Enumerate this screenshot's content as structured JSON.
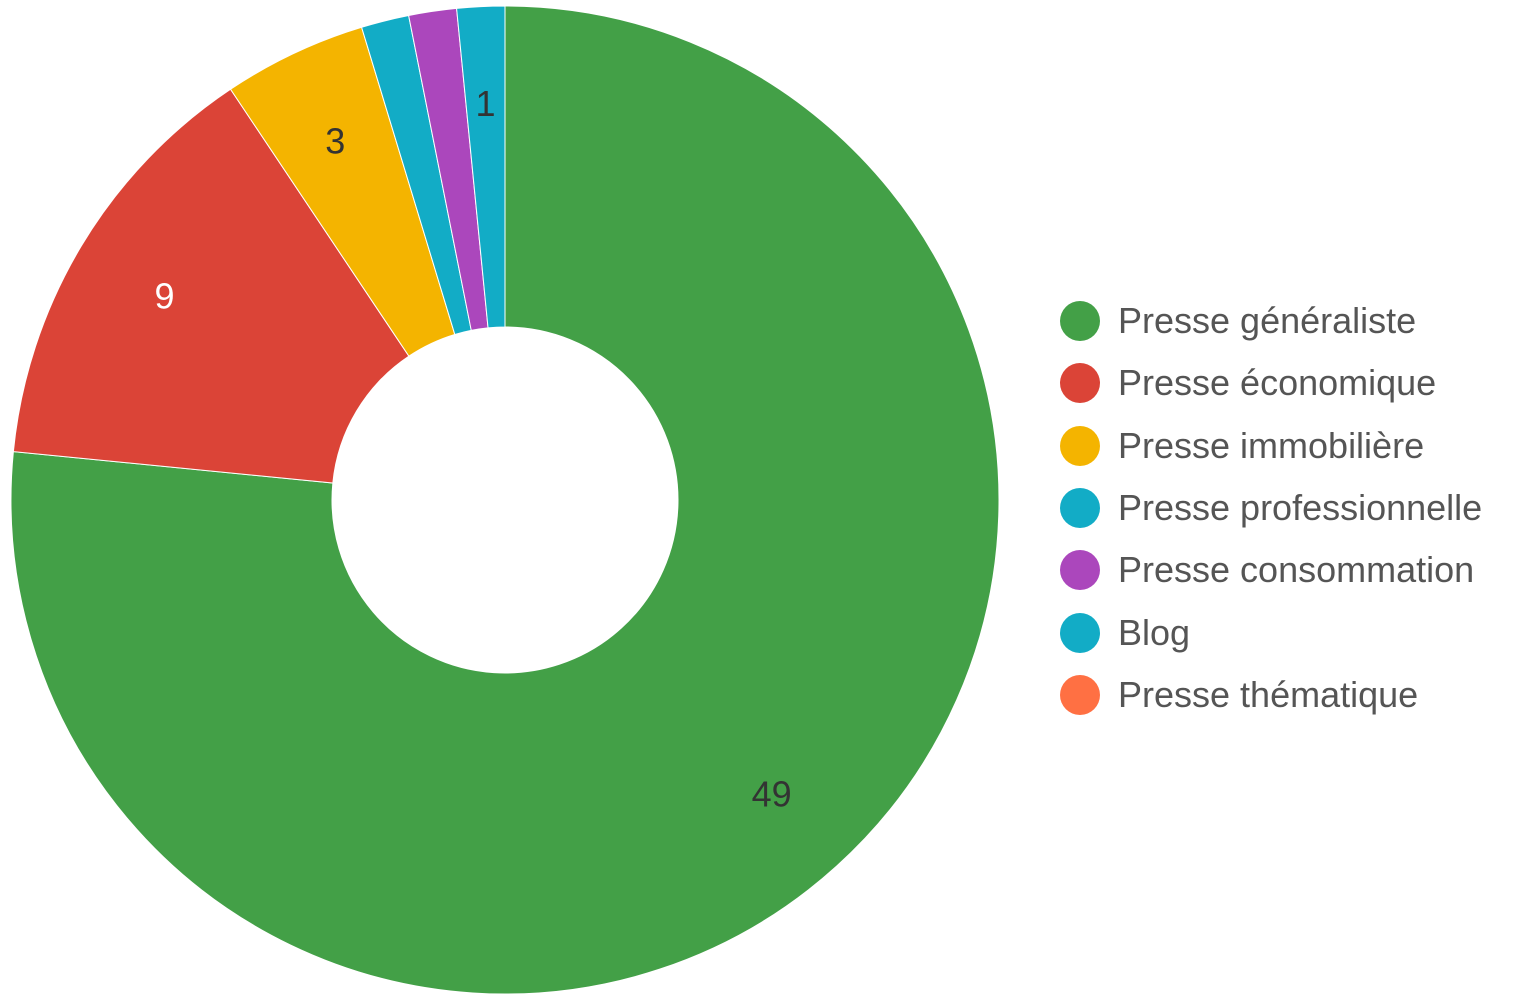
{
  "chart_data": {
    "type": "pie",
    "donut": true,
    "categories": [
      "Presse généraliste",
      "Presse économique",
      "Presse immobilière",
      "Presse professionnelle",
      "Presse consommation",
      "Blog",
      "Presse thématique"
    ],
    "values": [
      49,
      9,
      3,
      1,
      1,
      1,
      0
    ],
    "colors": [
      "#43A047",
      "#DB4437",
      "#F4B400",
      "#12ACC6",
      "#AB47BC",
      "#12ACC6",
      "#FF7043"
    ],
    "data_labels": [
      "49",
      "9",
      "3",
      "",
      "",
      "1",
      ""
    ],
    "label_colors": [
      "#333333",
      "#ffffff",
      "#333333",
      "#333333",
      "#333333",
      "#333333",
      "#333333"
    ],
    "legend_position": "right",
    "start": "top, clockwise"
  }
}
